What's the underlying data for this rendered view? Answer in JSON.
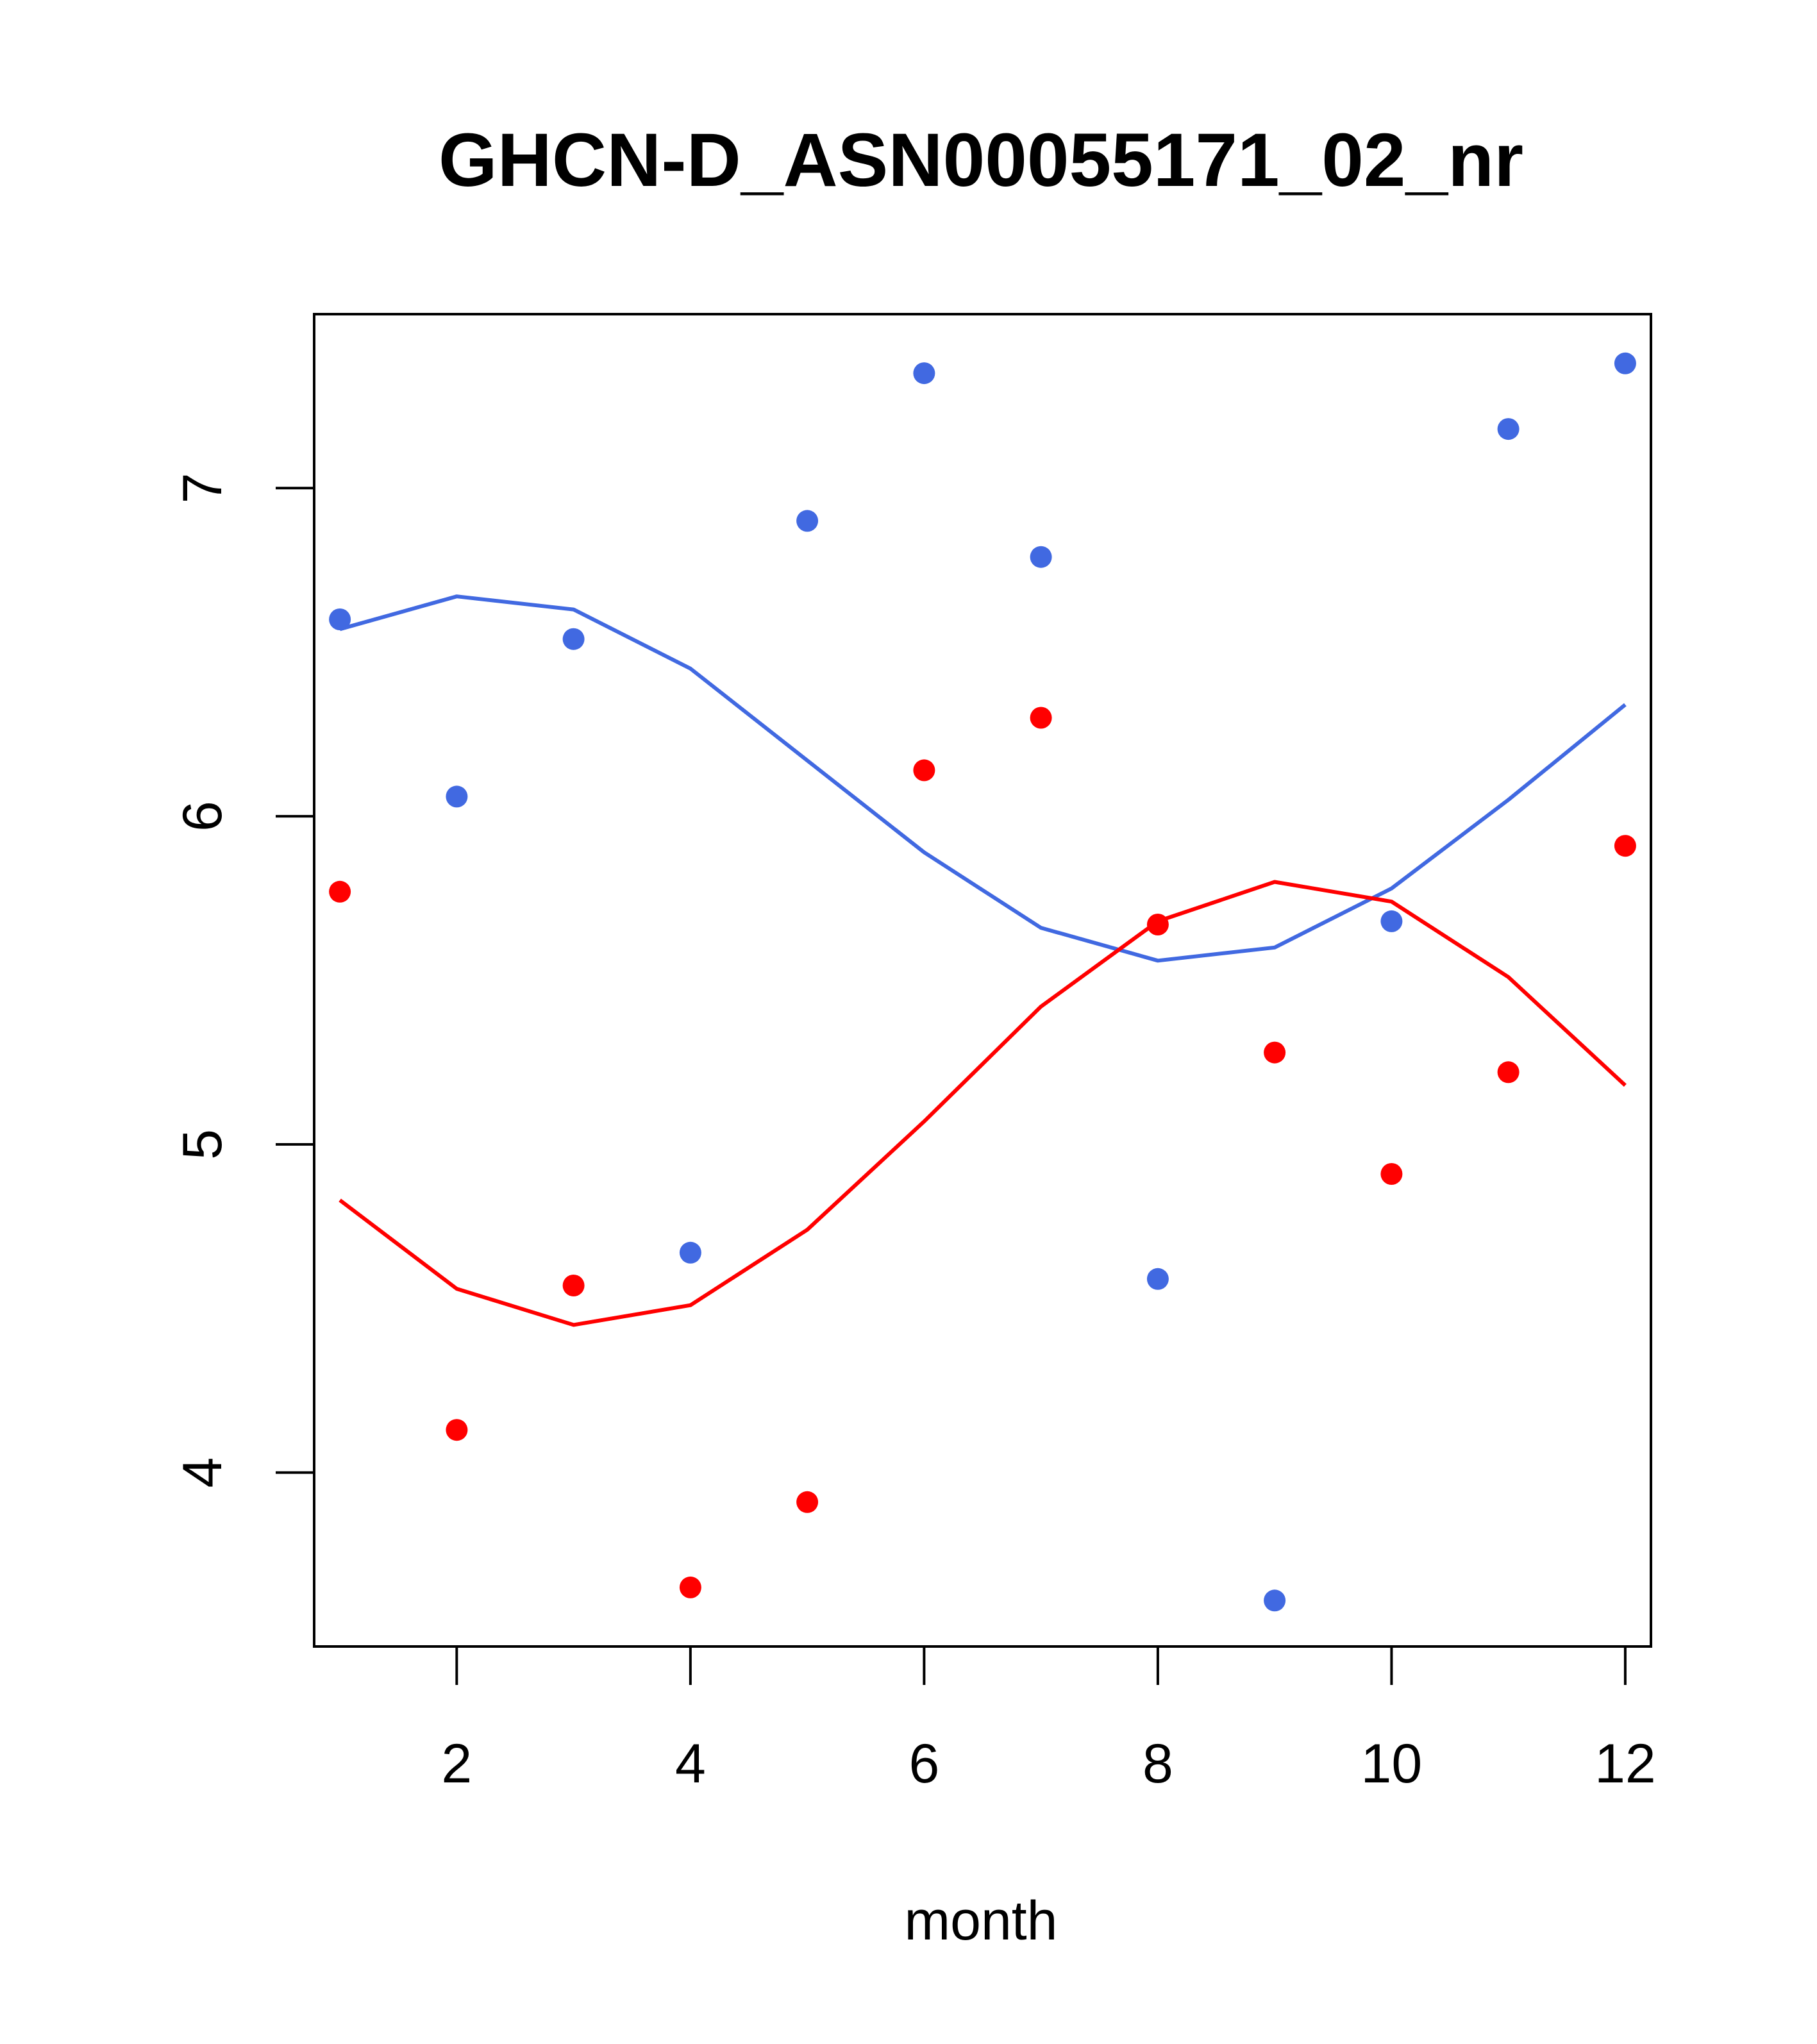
{
  "chart_data": {
    "type": "scatter",
    "title": "GHCN-D_ASN00055171_02_nr",
    "xlabel": "month",
    "ylabel": "",
    "xlim": [
      0.78,
      12.22
    ],
    "ylim": [
      3.47,
      7.53
    ],
    "x_ticks": [
      2,
      4,
      6,
      8,
      10,
      12
    ],
    "y_ticks": [
      4,
      5,
      6,
      7
    ],
    "grid": false,
    "legend": "none",
    "series": [
      {
        "color": "#4169e1",
        "x": [
          1,
          2,
          3,
          4,
          5,
          6,
          7,
          8,
          9,
          10,
          11,
          12
        ],
        "points": [
          6.6,
          6.06,
          6.54,
          4.67,
          6.9,
          7.35,
          6.79,
          4.59,
          3.61,
          5.68,
          7.18,
          7.38
        ],
        "line": [
          6.57,
          6.67,
          6.63,
          6.45,
          6.17,
          5.89,
          5.66,
          5.56,
          5.6,
          5.78,
          6.05,
          6.34
        ]
      },
      {
        "color": "#ff0000",
        "x": [
          1,
          2,
          3,
          4,
          5,
          6,
          7,
          8,
          9,
          10,
          11,
          12
        ],
        "points": [
          5.77,
          4.13,
          4.57,
          3.65,
          3.91,
          6.14,
          6.3,
          5.67,
          5.28,
          4.91,
          5.22,
          5.91
        ],
        "line": [
          4.83,
          4.56,
          4.45,
          4.51,
          4.74,
          5.07,
          5.42,
          5.68,
          5.8,
          5.74,
          5.51,
          5.18
        ]
      }
    ]
  }
}
